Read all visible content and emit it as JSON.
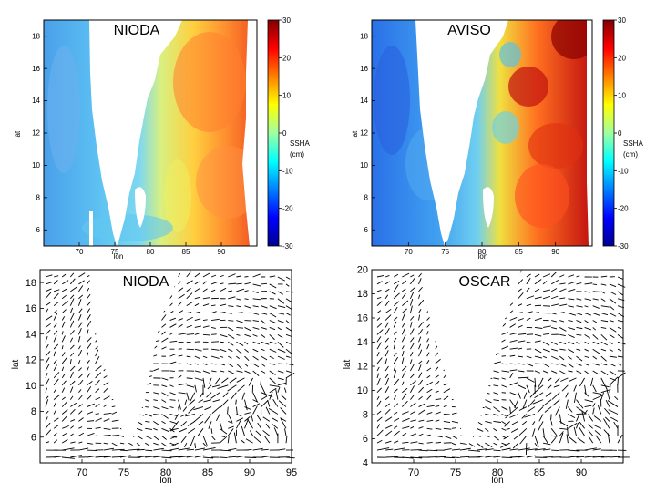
{
  "figure_title": "",
  "chart_data": [
    {
      "type": "heatmap",
      "panel": "top-left",
      "title": "NIODA",
      "variable": "SSHA",
      "xlabel": "lon",
      "ylabel": "lat",
      "xlim": [
        65,
        95
      ],
      "ylim": [
        5,
        19
      ],
      "xticks": [
        70,
        75,
        80,
        85,
        90
      ],
      "yticks": [
        6,
        8,
        10,
        12,
        14,
        16,
        18
      ],
      "colorbar": {
        "label_line1": "SSHA",
        "label_line2": "(cm)",
        "range": [
          -30,
          30
        ],
        "ticks": [
          30,
          20,
          10,
          0,
          -10,
          -20,
          -30
        ]
      },
      "pattern": {
        "west": "negative (about -10 cm)",
        "east_bay_of_bengal": "positive (about +10 to +20 cm)",
        "land": "Indian subcontinent, blank"
      }
    },
    {
      "type": "heatmap",
      "panel": "top-right",
      "title": "AVISO",
      "variable": "SSHA",
      "xlabel": "lon",
      "ylabel": "lat",
      "xlim": [
        65,
        95
      ],
      "ylim": [
        5,
        19
      ],
      "xticks": [
        70,
        75,
        80,
        85,
        90
      ],
      "yticks": [
        6,
        8,
        10,
        12,
        14,
        16,
        18
      ],
      "colorbar": {
        "label_line1": "SSHA",
        "label_line2": "(cm)",
        "range": [
          -30,
          30
        ],
        "ticks": [
          30,
          20,
          10,
          0,
          -10,
          -20,
          -30
        ]
      },
      "pattern": {
        "west": "negative (about -15 cm)",
        "east_bay_of_bengal": "positive eddies (about +20 to +30 cm)",
        "land": "Indian subcontinent, blank"
      }
    },
    {
      "type": "quiver",
      "panel": "bottom-left",
      "title": "NIODA",
      "variable": "surface currents",
      "xlabel": "lon",
      "ylabel": "lat",
      "xlim": [
        65,
        95
      ],
      "ylim": [
        4,
        19
      ],
      "xticks": [
        70,
        75,
        80,
        85,
        90,
        95
      ],
      "yticks": [
        6,
        8,
        10,
        12,
        14,
        16,
        18
      ]
    },
    {
      "type": "quiver",
      "panel": "bottom-right",
      "title": "OSCAR",
      "variable": "surface currents",
      "xlabel": "lon",
      "ylabel": "lat",
      "xlim": [
        65,
        95
      ],
      "ylim": [
        4,
        20
      ],
      "xticks": [
        70,
        75,
        80,
        85,
        90
      ],
      "yticks": [
        4,
        6,
        8,
        10,
        12,
        14,
        16,
        18,
        20
      ]
    }
  ]
}
